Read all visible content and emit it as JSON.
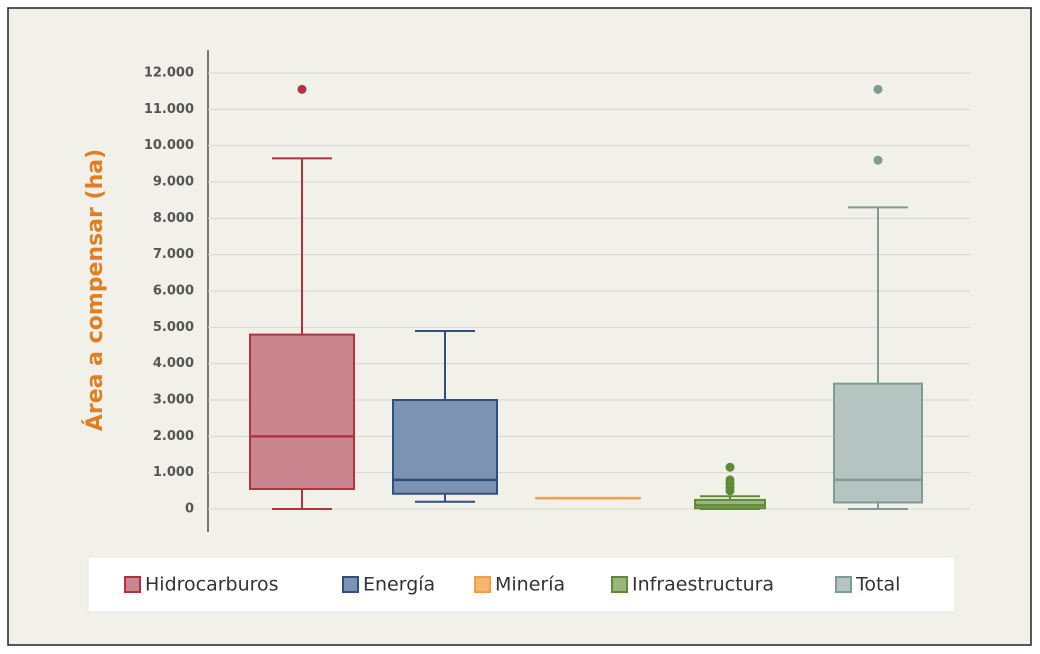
{
  "chart_data": {
    "type": "box",
    "y_label": "Área a compensar (ha)",
    "ylim": [
      0,
      12000
    ],
    "yticks": [
      0,
      {
        "value": 1000,
        "label": "1.000"
      },
      {
        "value": 2000,
        "label": "2.000"
      },
      {
        "value": 3000,
        "label": "3.000"
      },
      {
        "value": 4000,
        "label": "4.000"
      },
      {
        "value": 5000,
        "label": "5.000"
      },
      {
        "value": 6000,
        "label": "6.000"
      },
      {
        "value": 7000,
        "label": "7.000"
      },
      {
        "value": 8000,
        "label": "8.000"
      },
      {
        "value": 9000,
        "label": "9.000"
      },
      {
        "value": 10000,
        "label": "10.000"
      },
      {
        "value": 11000,
        "label": "11.000"
      },
      {
        "value": 12000,
        "label": "12.000"
      }
    ],
    "grid": true,
    "series": [
      {
        "name": "Hidrocarburos",
        "color": "#c9868e",
        "edge": "#b0343f",
        "min": 0,
        "q1": 550,
        "median": 2000,
        "q3": 4800,
        "max": 9650,
        "outliers": [
          11550
        ]
      },
      {
        "name": "Energía",
        "color": "#7d93b3",
        "edge": "#2f4f7f",
        "min": 200,
        "q1": 420,
        "median": 800,
        "q3": 3000,
        "max": 4900,
        "outliers": []
      },
      {
        "name": "Minería",
        "color": "#f5b76e",
        "edge": "#f0a04a",
        "min": 300,
        "q1": 300,
        "median": 300,
        "q3": 300,
        "max": 300,
        "outliers": []
      },
      {
        "name": "Infraestructura",
        "color": "#9cb57e",
        "edge": "#5e8a3a",
        "min": 0,
        "q1": 20,
        "median": 100,
        "q3": 250,
        "max": 350,
        "outliers": [
          500,
          600,
          700,
          800,
          1150
        ]
      },
      {
        "name": "Total",
        "color": "#b5c4c0",
        "edge": "#7c9c95",
        "min": 0,
        "q1": 180,
        "median": 800,
        "q3": 3450,
        "max": 8300,
        "outliers": [
          9600,
          11550
        ]
      }
    ]
  }
}
